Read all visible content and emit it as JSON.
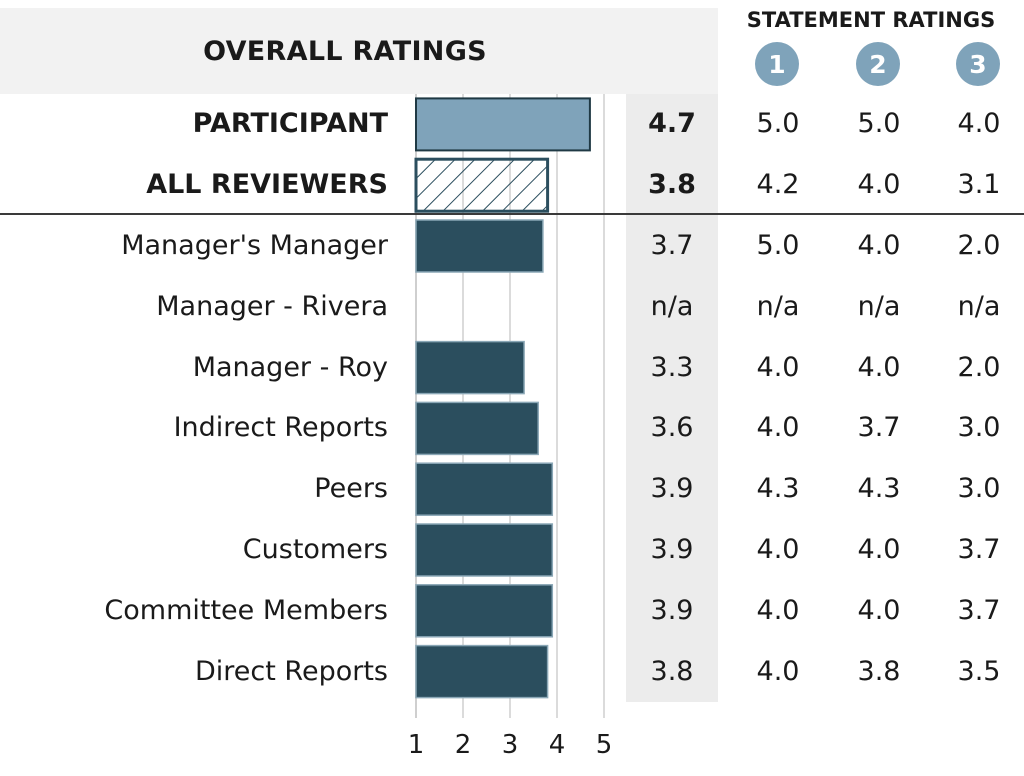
{
  "header": {
    "overall_title": "OVERALL RATINGS",
    "statements_title": "STATEMENT RATINGS",
    "statement_numbers": [
      "1",
      "2",
      "3"
    ],
    "badge_color": "#7fa3ba"
  },
  "colors": {
    "participant_bar": "#7fa3ba",
    "reviewer_bar": "#2b4e5e",
    "hatch": "#2b4e5e",
    "gridline": "#cfcfcf"
  },
  "chart_data": {
    "type": "bar",
    "orientation": "horizontal",
    "xlim": [
      1,
      5
    ],
    "ticks": [
      "1",
      "2",
      "3",
      "4",
      "5"
    ],
    "grid": true,
    "rows": [
      {
        "label": "PARTICIPANT",
        "value": 4.7,
        "avg": "4.7",
        "s1": "5.0",
        "s2": "5.0",
        "s3": "4.0",
        "style": "participant",
        "bold": true
      },
      {
        "label": "ALL REVIEWERS",
        "value": 3.8,
        "avg": "3.8",
        "s1": "4.2",
        "s2": "4.0",
        "s3": "3.1",
        "style": "hatched",
        "bold": true
      },
      {
        "label": "Manager's Manager",
        "value": 3.7,
        "avg": "3.7",
        "s1": "5.0",
        "s2": "4.0",
        "s3": "2.0",
        "style": "reviewer",
        "bold": false
      },
      {
        "label": "Manager - Rivera",
        "value": null,
        "avg": "n/a",
        "s1": "n/a",
        "s2": "n/a",
        "s3": "n/a",
        "style": "reviewer",
        "bold": false
      },
      {
        "label": "Manager - Roy",
        "value": 3.3,
        "avg": "3.3",
        "s1": "4.0",
        "s2": "4.0",
        "s3": "2.0",
        "style": "reviewer",
        "bold": false
      },
      {
        "label": "Indirect Reports",
        "value": 3.6,
        "avg": "3.6",
        "s1": "4.0",
        "s2": "3.7",
        "s3": "3.0",
        "style": "reviewer",
        "bold": false
      },
      {
        "label": "Peers",
        "value": 3.9,
        "avg": "3.9",
        "s1": "4.3",
        "s2": "4.3",
        "s3": "3.0",
        "style": "reviewer",
        "bold": false
      },
      {
        "label": "Customers",
        "value": 3.9,
        "avg": "3.9",
        "s1": "4.0",
        "s2": "4.0",
        "s3": "3.7",
        "style": "reviewer",
        "bold": false
      },
      {
        "label": "Committee Members",
        "value": 3.9,
        "avg": "3.9",
        "s1": "4.0",
        "s2": "4.0",
        "s3": "3.7",
        "style": "reviewer",
        "bold": false
      },
      {
        "label": "Direct Reports",
        "value": 3.8,
        "avg": "3.8",
        "s1": "4.0",
        "s2": "3.8",
        "s3": "3.5",
        "style": "reviewer",
        "bold": false
      }
    ]
  }
}
